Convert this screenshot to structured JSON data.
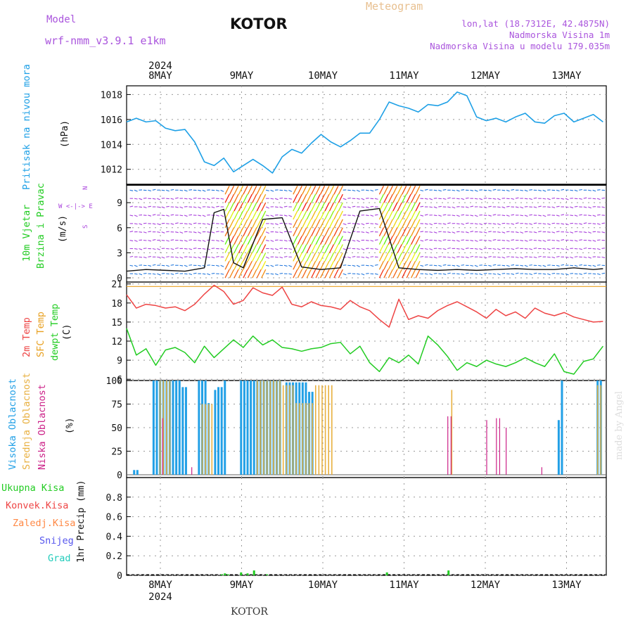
{
  "header": {
    "model_label": "Model",
    "model_name": "wrf-nmm_v3.9.1 e1km",
    "station": "KOTOR",
    "title": "Meteogram",
    "lonlat": "lon,lat (18.7312E, 42.4875N)",
    "elevation": "Nadmorska Visina 1m",
    "model_elevation": "Nadmorska Visina u modelu 179.035m"
  },
  "footer": {
    "station": "KOTOR",
    "watermark": "made by Angel"
  },
  "colors": {
    "pressure": "#1ea0e6",
    "wind_green": "#22cc22",
    "wind_purple": "#aa44dd",
    "temp2m": "#ee4444",
    "sfc_temp": "#e8a020",
    "dewpoint": "#22cc22",
    "cloud_high": "#22a0e6",
    "cloud_mid": "#e8b040",
    "cloud_low": "#cc2288",
    "precip_total": "#22cc22",
    "precip_conv": "#ee4444",
    "precip_frozen": "#ff8844",
    "precip_snow": "#5555ee",
    "precip_hail": "#22ccbb",
    "grid": "#999999"
  },
  "chart_data": [
    {
      "type": "line",
      "name": "pressure",
      "ylabel_1": "Pritisak na nivou mora",
      "ylabel_2": "(hPa)",
      "year": "2024",
      "categories": [
        "8MAY",
        "9MAY",
        "10MAY",
        "11MAY",
        "12MAY",
        "13MAY"
      ],
      "yticks": [
        "1012",
        "1014",
        "1016",
        "1018"
      ],
      "ylim": [
        1010.8,
        1018.7
      ],
      "grid": true,
      "x": [
        0,
        3,
        6,
        9,
        12,
        15,
        18,
        21,
        24,
        27,
        30,
        33,
        36,
        39,
        42,
        45,
        48,
        51,
        54,
        57,
        60,
        63,
        66,
        69,
        72,
        75,
        78,
        81,
        84,
        87,
        90,
        93,
        96,
        99,
        102,
        105,
        108,
        111,
        114,
        117,
        120,
        123,
        126,
        129,
        132,
        135,
        138,
        141,
        144,
        147
      ],
      "values": [
        1015.8,
        1016.1,
        1015.8,
        1015.9,
        1015.3,
        1015.1,
        1015.2,
        1014.2,
        1012.6,
        1012.3,
        1012.9,
        1011.8,
        1012.3,
        1012.8,
        1012.3,
        1011.7,
        1013.0,
        1013.6,
        1013.3,
        1014.1,
        1014.8,
        1014.2,
        1013.8,
        1014.3,
        1014.9,
        1014.9,
        1016.0,
        1017.4,
        1017.1,
        1016.9,
        1016.6,
        1017.2,
        1017.1,
        1017.4,
        1018.2,
        1017.9,
        1016.2,
        1015.9,
        1016.1,
        1015.8,
        1016.2,
        1016.5,
        1015.8,
        1015.7,
        1016.3,
        1016.5,
        1015.8,
        1016.1,
        1016.4,
        1015.8
      ]
    },
    {
      "type": "line",
      "name": "wind",
      "ylabel_1": "10m Vjetar",
      "ylabel_2": "Brzina i Pravac",
      "ylabel_3": "(m/s)",
      "compass": "W <-|-> E",
      "compass_n": "N",
      "compass_s": "S",
      "yticks": [
        "0",
        "3",
        "6",
        "9"
      ],
      "ylim": [
        -0.5,
        11.2
      ],
      "grid": true,
      "x": [
        0,
        6,
        12,
        18,
        24,
        27,
        30,
        33,
        36,
        42,
        48,
        54,
        60,
        66,
        72,
        78,
        84,
        90,
        96,
        102,
        108,
        114,
        120,
        126,
        132,
        138,
        144,
        147
      ],
      "values": [
        0.8,
        1.0,
        0.9,
        0.8,
        1.2,
        7.8,
        8.2,
        1.8,
        1.2,
        7.0,
        7.2,
        1.3,
        1.0,
        1.2,
        8.0,
        8.3,
        1.2,
        1.0,
        0.9,
        1.0,
        0.9,
        1.0,
        1.1,
        1.0,
        1.0,
        1.2,
        1.0,
        1.1
      ],
      "windy_periods": [
        [
          30,
          42
        ],
        [
          51,
          66
        ],
        [
          78,
          90
        ]
      ]
    },
    {
      "type": "line",
      "name": "temperature",
      "ylabel_1": "2m Temp",
      "ylabel_2": "SFC Temp",
      "ylabel_3": "dewpt Temp",
      "ylabel_4": "(C)",
      "yticks": [
        "6",
        "9",
        "12",
        "15",
        "18",
        "21"
      ],
      "ylim": [
        5.8,
        21.3
      ],
      "grid": true,
      "x": [
        0,
        3,
        6,
        9,
        12,
        15,
        18,
        21,
        24,
        27,
        30,
        33,
        36,
        39,
        42,
        45,
        48,
        51,
        54,
        57,
        60,
        63,
        66,
        69,
        72,
        75,
        78,
        81,
        84,
        87,
        90,
        93,
        96,
        99,
        102,
        105,
        108,
        111,
        114,
        117,
        120,
        123,
        126,
        129,
        132,
        135,
        138,
        141,
        144,
        147
      ],
      "series": [
        {
          "name": "2m Temp",
          "values": [
            19.3,
            17.2,
            17.8,
            17.6,
            17.2,
            17.4,
            16.8,
            17.8,
            19.4,
            20.8,
            19.8,
            17.8,
            18.4,
            20.4,
            19.6,
            19.2,
            20.5,
            17.8,
            17.4,
            18.2,
            17.6,
            17.4,
            17.0,
            18.4,
            17.4,
            16.8,
            15.4,
            14.2,
            18.6,
            15.4,
            16.0,
            15.6,
            16.8,
            17.6,
            18.2,
            17.4,
            16.6,
            15.6,
            17.0,
            16.0,
            16.6,
            15.6,
            17.2,
            16.4,
            16.0,
            16.5,
            15.8,
            15.4,
            15.0,
            15.1
          ]
        },
        {
          "name": "dewpt Temp",
          "values": [
            14.0,
            9.8,
            10.8,
            8.2,
            10.6,
            11.0,
            10.2,
            8.6,
            11.2,
            9.4,
            10.8,
            12.2,
            11.0,
            12.8,
            11.4,
            12.2,
            11.0,
            10.8,
            10.4,
            10.8,
            11.0,
            11.6,
            11.8,
            10.0,
            11.2,
            8.6,
            7.2,
            9.4,
            8.6,
            9.8,
            8.4,
            12.8,
            11.4,
            9.6,
            7.4,
            8.6,
            8.0,
            9.0,
            8.4,
            8.0,
            8.6,
            9.4,
            8.6,
            8.0,
            10.0,
            7.2,
            6.8,
            8.8,
            9.2,
            11.2
          ]
        }
      ]
    },
    {
      "type": "bar",
      "name": "clouds",
      "ylabel_1": "Visoka Oblacnost",
      "ylabel_2": "Srednja Oblacnost",
      "ylabel_3": "Niska Oblacnost",
      "ylabel_4": "(%)",
      "yticks": [
        "0",
        "25",
        "50",
        "75",
        "100"
      ],
      "ylim": [
        -3,
        100
      ],
      "high_cover": [
        [
          2,
          4,
          "5"
        ],
        [
          8,
          13,
          "100"
        ],
        [
          13,
          17,
          "100"
        ],
        [
          17,
          19,
          "93"
        ],
        [
          22,
          25,
          "100"
        ],
        [
          25,
          26,
          "76"
        ],
        [
          27,
          28,
          "90"
        ],
        [
          28,
          30,
          "93"
        ],
        [
          30,
          31,
          "100"
        ],
        [
          35,
          42,
          "100"
        ],
        [
          42,
          48,
          "100"
        ],
        [
          49,
          53,
          "98"
        ],
        [
          53,
          56,
          "98"
        ],
        [
          56,
          58,
          "88"
        ],
        [
          133,
          134,
          "58"
        ],
        [
          134,
          135,
          "100"
        ],
        [
          145,
          147,
          "100"
        ]
      ],
      "mid_cover": [
        [
          10,
          14,
          "100"
        ],
        [
          23,
          27,
          "75"
        ],
        [
          40,
          48,
          "100"
        ],
        [
          48,
          52,
          "95"
        ],
        [
          52,
          58,
          "76"
        ],
        [
          58,
          64,
          "95"
        ],
        [
          100,
          101,
          "90"
        ],
        [
          145,
          147,
          "95"
        ]
      ],
      "low_cover": [
        [
          11,
          12,
          "60"
        ],
        [
          20,
          21,
          "8"
        ],
        [
          99,
          101,
          "62"
        ],
        [
          111,
          112,
          "58"
        ],
        [
          114,
          115,
          "60"
        ],
        [
          115,
          116,
          "60"
        ],
        [
          117,
          118,
          "50"
        ],
        [
          128,
          129,
          "8"
        ]
      ]
    },
    {
      "type": "bar",
      "name": "precip",
      "ylabel_1": "1hr Precip (mm)",
      "legend": [
        "Ukupna Kisa",
        "Konvek.Kisa",
        "Zaledj.Kisa",
        "Snijeg",
        "Grad"
      ],
      "yticks": [
        "0",
        "0.2",
        "0.4",
        "0.6",
        "0.8"
      ],
      "ylim": [
        0,
        1.0
      ],
      "x": [
        29,
        30,
        31,
        35,
        37,
        39,
        43,
        80,
        99
      ],
      "values": [
        0.01,
        0.02,
        0.01,
        0.03,
        0.02,
        0.05,
        0.01,
        0.03,
        0.05
      ]
    }
  ]
}
